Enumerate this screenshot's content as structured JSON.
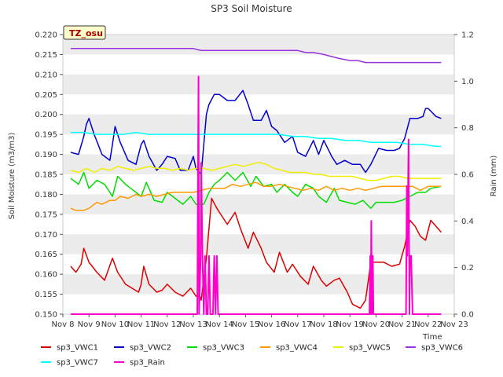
{
  "chart_data": {
    "type": "line",
    "title": "SP3 Soil Moisture",
    "xlabel": "Time",
    "ylabel": "Soil Moisture (m3/m3)",
    "y2label": "Rain (mm)",
    "badge": "TZ_osu",
    "x_ticks": [
      "Nov 8",
      "Nov 9",
      "Nov 10",
      "Nov 11",
      "Nov 12",
      "Nov 13",
      "Nov 14",
      "Nov 15",
      "Nov 16",
      "Nov 17",
      "Nov 18",
      "Nov 19",
      "Nov 20",
      "Nov 21",
      "Nov 22",
      "Nov 23"
    ],
    "xlim": [
      8,
      23
    ],
    "y_ticks": [
      "0.150",
      "0.155",
      "0.160",
      "0.165",
      "0.170",
      "0.175",
      "0.180",
      "0.185",
      "0.190",
      "0.195",
      "0.200",
      "0.205",
      "0.210",
      "0.215",
      "0.220"
    ],
    "ylim": [
      0.15,
      0.22
    ],
    "y2_ticks": [
      "0.0",
      "0.2",
      "0.4",
      "0.6",
      "0.8",
      "1.0",
      "1.2"
    ],
    "y2lim": [
      0,
      1.2
    ],
    "grid": true,
    "legend_position": "bottom",
    "series": [
      {
        "name": "sp3_VWC1",
        "color": "#dd0000",
        "axis": "left",
        "x": [
          8.3,
          8.5,
          8.7,
          8.8,
          9.0,
          9.3,
          9.6,
          9.9,
          10.1,
          10.4,
          10.9,
          11.0,
          11.1,
          11.3,
          11.6,
          11.8,
          12.0,
          12.3,
          12.6,
          12.9,
          13.1,
          13.2,
          13.25,
          13.3,
          13.5,
          13.7,
          13.9,
          14.1,
          14.3,
          14.6,
          14.8,
          15.1,
          15.3,
          15.6,
          15.8,
          16.1,
          16.3,
          16.6,
          16.8,
          17.1,
          17.4,
          17.6,
          17.9,
          18.1,
          18.4,
          18.6,
          18.9,
          19.1,
          19.4,
          19.6,
          19.8,
          20.0,
          20.3,
          20.6,
          20.9,
          21.1,
          21.3,
          21.5,
          21.7,
          21.9,
          22.1,
          22.3,
          22.5
        ],
        "y": [
          0.162,
          0.1605,
          0.1625,
          0.1665,
          0.163,
          0.1605,
          0.1585,
          0.164,
          0.1605,
          0.1575,
          0.1555,
          0.1575,
          0.162,
          0.1575,
          0.1555,
          0.156,
          0.1575,
          0.1555,
          0.1545,
          0.1565,
          0.1545,
          0.1545,
          0.1545,
          0.1535,
          0.164,
          0.179,
          0.1765,
          0.1745,
          0.1725,
          0.1755,
          0.1715,
          0.1665,
          0.1705,
          0.1665,
          0.163,
          0.1605,
          0.1655,
          0.1605,
          0.1625,
          0.1595,
          0.1575,
          0.162,
          0.1585,
          0.157,
          0.1585,
          0.159,
          0.1555,
          0.1525,
          0.1515,
          0.1535,
          0.163,
          0.163,
          0.163,
          0.162,
          0.1625,
          0.167,
          0.1735,
          0.172,
          0.1695,
          0.1685,
          0.1735,
          0.172,
          0.1705
        ]
      },
      {
        "name": "sp3_VWC2",
        "color": "#0000cc",
        "axis": "left",
        "x": [
          8.3,
          8.6,
          8.8,
          8.9,
          9.0,
          9.2,
          9.5,
          9.8,
          9.9,
          10.0,
          10.2,
          10.5,
          10.8,
          11.0,
          11.1,
          11.3,
          11.6,
          11.8,
          12.0,
          12.3,
          12.5,
          12.8,
          13.0,
          13.1,
          13.3,
          13.5,
          13.6,
          13.8,
          14.0,
          14.3,
          14.6,
          14.9,
          15.1,
          15.3,
          15.6,
          15.8,
          16.0,
          16.2,
          16.5,
          16.8,
          17.0,
          17.3,
          17.6,
          17.8,
          18.0,
          18.3,
          18.5,
          18.8,
          19.1,
          19.4,
          19.6,
          19.8,
          20.1,
          20.4,
          20.7,
          20.9,
          21.1,
          21.3,
          21.6,
          21.8,
          21.9,
          22.0,
          22.3,
          22.5
        ],
        "y": [
          0.1905,
          0.19,
          0.1945,
          0.1975,
          0.199,
          0.195,
          0.19,
          0.1885,
          0.1925,
          0.197,
          0.193,
          0.1885,
          0.1875,
          0.1925,
          0.1935,
          0.1895,
          0.186,
          0.1875,
          0.1895,
          0.189,
          0.186,
          0.186,
          0.1895,
          0.1865,
          0.185,
          0.2,
          0.2025,
          0.205,
          0.205,
          0.2035,
          0.2035,
          0.206,
          0.2025,
          0.1985,
          0.1985,
          0.201,
          0.197,
          0.196,
          0.193,
          0.1945,
          0.1905,
          0.1895,
          0.1935,
          0.19,
          0.1935,
          0.1895,
          0.1875,
          0.1885,
          0.1875,
          0.1875,
          0.1855,
          0.1875,
          0.1915,
          0.191,
          0.191,
          0.1915,
          0.194,
          0.199,
          0.199,
          0.1995,
          0.2015,
          0.2015,
          0.1995,
          0.199
        ]
      },
      {
        "name": "sp3_VWC3",
        "color": "#00dd00",
        "axis": "left",
        "x": [
          8.3,
          8.6,
          8.8,
          9.0,
          9.3,
          9.6,
          9.9,
          10.1,
          10.4,
          10.7,
          11.0,
          11.2,
          11.5,
          11.8,
          12.0,
          12.3,
          12.6,
          12.9,
          13.1,
          13.4,
          13.6,
          13.8,
          14.0,
          14.3,
          14.6,
          14.9,
          15.2,
          15.4,
          15.7,
          16.0,
          16.2,
          16.5,
          16.8,
          17.0,
          17.3,
          17.6,
          17.8,
          18.1,
          18.4,
          18.6,
          18.9,
          19.2,
          19.5,
          19.8,
          20.0,
          20.4,
          20.7,
          21.0,
          21.3,
          21.6,
          21.9,
          22.1,
          22.5
        ],
        "y": [
          0.184,
          0.1825,
          0.1855,
          0.1815,
          0.1835,
          0.1825,
          0.1795,
          0.1845,
          0.1825,
          0.181,
          0.1795,
          0.183,
          0.1785,
          0.178,
          0.1805,
          0.179,
          0.1775,
          0.1795,
          0.1775,
          0.1775,
          0.1805,
          0.1825,
          0.1835,
          0.1855,
          0.1835,
          0.1855,
          0.182,
          0.1845,
          0.182,
          0.1825,
          0.1805,
          0.1825,
          0.1805,
          0.1795,
          0.1825,
          0.1815,
          0.1795,
          0.178,
          0.1815,
          0.1785,
          0.178,
          0.1775,
          0.1785,
          0.1765,
          0.178,
          0.178,
          0.178,
          0.1785,
          0.1795,
          0.1805,
          0.1805,
          0.1815,
          0.182
        ]
      },
      {
        "name": "sp3_VWC4",
        "color": "#ff9900",
        "axis": "left",
        "x": [
          8.3,
          8.5,
          8.8,
          9.0,
          9.3,
          9.5,
          9.8,
          10.0,
          10.2,
          10.5,
          10.8,
          11.0,
          11.3,
          11.6,
          11.9,
          12.2,
          12.5,
          12.8,
          13.0,
          13.3,
          13.6,
          13.9,
          14.2,
          14.5,
          14.8,
          15.1,
          15.4,
          15.7,
          16.0,
          16.3,
          16.6,
          16.9,
          17.2,
          17.5,
          17.8,
          18.1,
          18.4,
          18.7,
          19.0,
          19.3,
          19.6,
          19.9,
          20.2,
          20.5,
          20.8,
          21.1,
          21.4,
          21.7,
          22.0,
          22.3,
          22.5
        ],
        "y": [
          0.1765,
          0.176,
          0.176,
          0.1765,
          0.178,
          0.1775,
          0.1785,
          0.1785,
          0.1795,
          0.179,
          0.18,
          0.1795,
          0.18,
          0.1795,
          0.18,
          0.1805,
          0.1805,
          0.1805,
          0.1805,
          0.181,
          0.1815,
          0.1815,
          0.1815,
          0.1825,
          0.182,
          0.1825,
          0.183,
          0.182,
          0.182,
          0.1825,
          0.182,
          0.1815,
          0.181,
          0.1815,
          0.181,
          0.182,
          0.181,
          0.1815,
          0.181,
          0.1815,
          0.181,
          0.1815,
          0.182,
          0.182,
          0.182,
          0.182,
          0.182,
          0.181,
          0.182,
          0.182,
          0.182
        ]
      },
      {
        "name": "sp3_VWC5",
        "color": "#eeee00",
        "axis": "left",
        "x": [
          8.3,
          8.6,
          8.9,
          9.2,
          9.5,
          9.8,
          10.1,
          10.4,
          10.7,
          11.0,
          11.3,
          11.6,
          11.9,
          12.2,
          12.5,
          12.8,
          13.1,
          13.4,
          13.7,
          14.0,
          14.3,
          14.6,
          14.9,
          15.2,
          15.5,
          15.8,
          16.1,
          16.4,
          16.7,
          17.0,
          17.3,
          17.6,
          17.9,
          18.2,
          18.5,
          18.8,
          19.1,
          19.4,
          19.7,
          20.0,
          20.3,
          20.6,
          20.9,
          21.2,
          21.5,
          21.8,
          22.1,
          22.5
        ],
        "y": [
          0.186,
          0.1855,
          0.1865,
          0.1855,
          0.1865,
          0.186,
          0.187,
          0.1865,
          0.186,
          0.1865,
          0.187,
          0.1865,
          0.1865,
          0.186,
          0.1865,
          0.186,
          0.1865,
          0.1865,
          0.186,
          0.1865,
          0.187,
          0.1875,
          0.187,
          0.1875,
          0.188,
          0.1875,
          0.1865,
          0.186,
          0.1855,
          0.1855,
          0.1855,
          0.185,
          0.185,
          0.1845,
          0.1845,
          0.1845,
          0.1845,
          0.184,
          0.1835,
          0.1835,
          0.184,
          0.1845,
          0.1845,
          0.184,
          0.184,
          0.184,
          0.184,
          0.184
        ]
      },
      {
        "name": "sp3_VWC6",
        "color": "#9933dd",
        "axis": "left",
        "x": [
          8.3,
          8.6,
          9.0,
          9.5,
          10.0,
          10.5,
          11.0,
          11.5,
          12.0,
          12.5,
          13.0,
          13.3,
          13.6,
          14.0,
          14.5,
          15.0,
          15.5,
          16.0,
          16.5,
          17.0,
          17.3,
          17.6,
          18.0,
          18.3,
          18.6,
          19.0,
          19.3,
          19.6,
          20.0,
          20.5,
          21.0,
          21.5,
          22.0,
          22.5
        ],
        "y": [
          0.2165,
          0.2165,
          0.2165,
          0.2165,
          0.2165,
          0.2165,
          0.2165,
          0.2165,
          0.2165,
          0.2165,
          0.2165,
          0.216,
          0.216,
          0.216,
          0.216,
          0.216,
          0.216,
          0.216,
          0.216,
          0.216,
          0.2155,
          0.2155,
          0.215,
          0.2145,
          0.214,
          0.2135,
          0.2135,
          0.213,
          0.213,
          0.213,
          0.213,
          0.213,
          0.213,
          0.213
        ]
      },
      {
        "name": "sp3_VWC7",
        "color": "#00ffff",
        "axis": "left",
        "x": [
          8.3,
          8.8,
          9.3,
          9.8,
          10.3,
          10.8,
          11.3,
          11.8,
          12.3,
          12.8,
          13.3,
          13.8,
          14.3,
          14.8,
          15.3,
          15.8,
          16.3,
          16.8,
          17.3,
          17.8,
          18.3,
          18.8,
          19.3,
          19.8,
          20.3,
          20.8,
          21.3,
          21.8,
          22.3,
          22.5
        ],
        "y": [
          0.1955,
          0.1955,
          0.195,
          0.195,
          0.195,
          0.1955,
          0.195,
          0.195,
          0.195,
          0.195,
          0.195,
          0.195,
          0.195,
          0.195,
          0.195,
          0.195,
          0.195,
          0.1945,
          0.1945,
          0.194,
          0.194,
          0.1935,
          0.1935,
          0.193,
          0.193,
          0.193,
          0.1925,
          0.1925,
          0.192,
          0.192
        ]
      },
      {
        "name": "sp3_Rain",
        "color": "#ff00cc",
        "axis": "right",
        "x": [
          8.3,
          13.15,
          13.2,
          13.22,
          13.28,
          13.3,
          13.35,
          13.4,
          13.45,
          13.5,
          13.55,
          13.6,
          13.65,
          13.7,
          13.75,
          13.8,
          13.85,
          13.9,
          13.95,
          19.75,
          19.78,
          19.8,
          19.82,
          19.85,
          19.88,
          19.9,
          21.15,
          21.18,
          21.2,
          21.25,
          21.28,
          21.3,
          21.35,
          21.4,
          21.45,
          22.5
        ],
        "y": [
          0,
          0,
          1.02,
          0,
          0.25,
          0.65,
          0.25,
          0,
          0.25,
          0,
          0,
          0.25,
          0,
          0,
          0,
          0.25,
          0,
          0.25,
          0,
          0,
          0.25,
          0,
          0.4,
          0,
          0.25,
          0,
          0,
          0.55,
          0.25,
          0.75,
          0,
          0.25,
          0.25,
          0,
          0,
          0
        ]
      }
    ]
  }
}
